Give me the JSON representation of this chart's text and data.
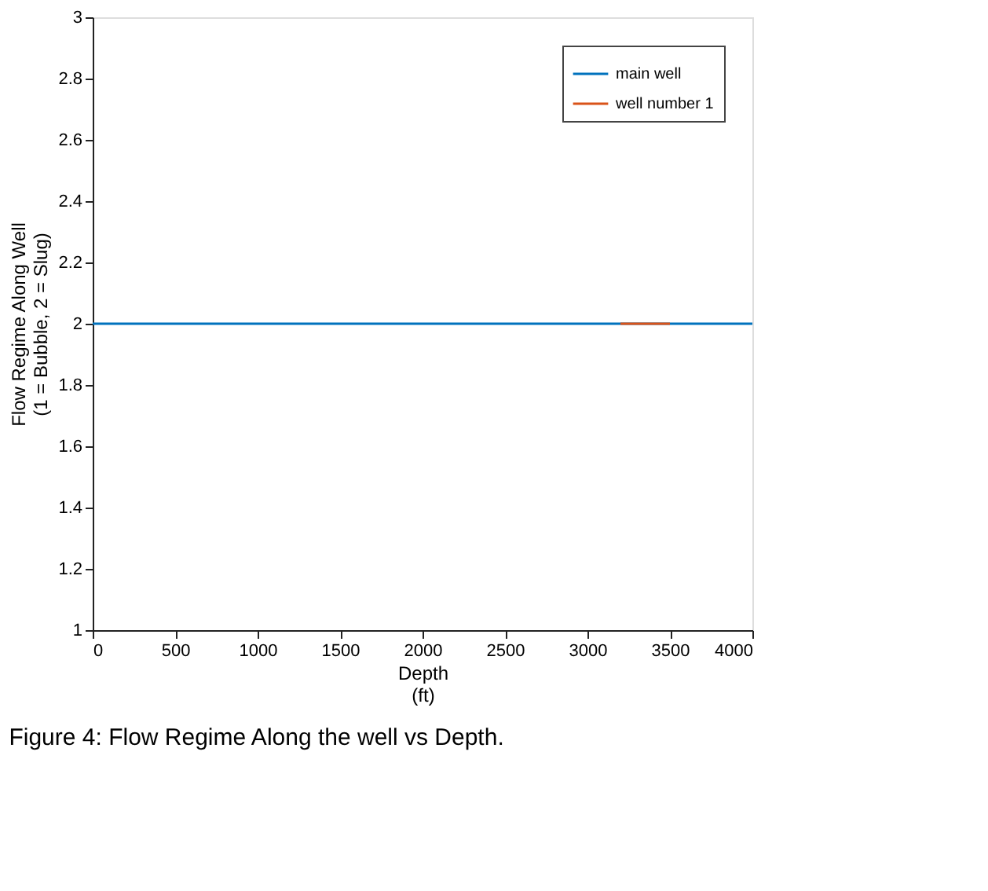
{
  "chart_data": {
    "type": "line",
    "xlabel": "Depth\n(ft)",
    "ylabel": "Flow Regime Along Well\n(1 = Bubble, 2 = Slug)",
    "series": [
      {
        "name": "main well",
        "color": "#0072bd",
        "x": [
          0,
          4000
        ],
        "values": [
          2,
          2
        ]
      },
      {
        "name": "well number 1",
        "color": "#d95319",
        "x": [
          3200,
          3500
        ],
        "values": [
          2,
          2
        ]
      }
    ],
    "xlim": [
      0,
      4000
    ],
    "xticks": [
      0,
      500,
      1000,
      1500,
      2000,
      2500,
      3000,
      3500,
      4000
    ],
    "ylim": [
      1,
      3
    ],
    "yticks": [
      1,
      1.2,
      1.4,
      1.6,
      1.8,
      2,
      2.2,
      2.4,
      2.6,
      2.8,
      3
    ],
    "grid": false,
    "legend": "top right",
    "marker": "none",
    "line_style": "solid",
    "annotations": [
      "Figure 4: Flow Regime Along the well vs Depth."
    ]
  }
}
